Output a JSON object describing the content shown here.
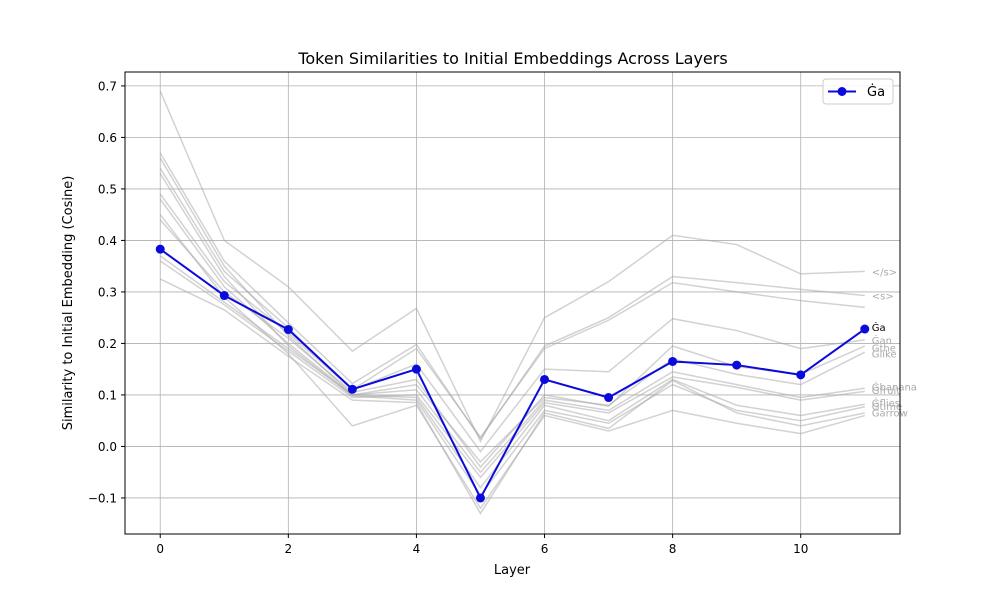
{
  "chart_data": {
    "type": "line",
    "title": "Token Similarities to Initial Embeddings Across Layers",
    "xlabel": "Layer",
    "ylabel": "Similarity to Initial Embedding (Cosine)",
    "xlim": [
      -0.55,
      11.55
    ],
    "ylim": [
      -0.17,
      0.727
    ],
    "x_ticks": [
      0,
      2,
      4,
      6,
      8,
      10
    ],
    "x_tick_labels": [
      "0",
      "2",
      "4",
      "6",
      "8",
      "10"
    ],
    "y_ticks": [
      -0.1,
      0.0,
      0.1,
      0.2,
      0.3,
      0.4,
      0.5,
      0.6,
      0.7
    ],
    "y_tick_labels": [
      "−0.1",
      "0.0",
      "0.1",
      "0.2",
      "0.3",
      "0.4",
      "0.5",
      "0.6",
      "0.7"
    ],
    "grid": true,
    "legend": {
      "position": "top-right",
      "entries": [
        "Ġa"
      ]
    },
    "x": [
      0,
      1,
      2,
      3,
      4,
      5,
      6,
      7,
      8,
      9,
      10,
      11
    ],
    "highlight": {
      "name": "Ġa",
      "color": "#0a0adc",
      "values": [
        0.383,
        0.293,
        0.227,
        0.111,
        0.15,
        -0.1,
        0.13,
        0.095,
        0.165,
        0.158,
        0.139,
        0.228
      ]
    },
    "background_series_color": "#a6a6a6",
    "background_series": [
      {
        "name": "</s>",
        "values": [
          0.69,
          0.4,
          0.31,
          0.185,
          0.268,
          0.01,
          0.25,
          0.32,
          0.41,
          0.392,
          0.335,
          0.34
        ]
      },
      {
        "name": "<s>",
        "values": [
          0.57,
          0.36,
          0.24,
          0.122,
          0.198,
          0.015,
          0.195,
          0.25,
          0.33,
          0.318,
          0.305,
          0.293
        ]
      },
      {
        "name": "",
        "values": [
          0.54,
          0.34,
          0.23,
          0.11,
          0.19,
          0.018,
          0.19,
          0.245,
          0.318,
          0.3,
          0.283,
          0.27
        ]
      },
      {
        "name": "Ġan",
        "values": [
          0.49,
          0.32,
          0.22,
          0.11,
          0.16,
          -0.01,
          0.15,
          0.145,
          0.248,
          0.225,
          0.19,
          0.207
        ]
      },
      {
        "name": "Ġthe",
        "values": [
          0.44,
          0.3,
          0.21,
          0.105,
          0.13,
          -0.04,
          0.1,
          0.078,
          0.195,
          0.155,
          0.14,
          0.195
        ]
      },
      {
        "name": "Ġlike",
        "values": [
          0.48,
          0.31,
          0.2,
          0.1,
          0.12,
          -0.03,
          0.095,
          0.08,
          0.17,
          0.14,
          0.12,
          0.183
        ]
      },
      {
        "name": "Ġbanana",
        "values": [
          0.37,
          0.28,
          0.19,
          0.1,
          0.11,
          -0.05,
          0.09,
          0.07,
          0.145,
          0.12,
          0.095,
          0.113
        ]
      },
      {
        "name": "Ġfruit",
        "values": [
          0.36,
          0.275,
          0.185,
          0.095,
          0.1,
          -0.06,
          0.085,
          0.065,
          0.135,
          0.115,
          0.09,
          0.107
        ]
      },
      {
        "name": "Ġflies",
        "values": [
          0.56,
          0.35,
          0.215,
          0.1,
          0.095,
          -0.08,
          0.08,
          0.05,
          0.13,
          0.08,
          0.06,
          0.082
        ]
      },
      {
        "name": "Ġtime",
        "values": [
          0.53,
          0.33,
          0.195,
          0.098,
          0.09,
          -0.095,
          0.07,
          0.045,
          0.12,
          0.07,
          0.05,
          0.077
        ]
      },
      {
        "name": "Ġarrow",
        "values": [
          0.45,
          0.29,
          0.18,
          0.04,
          0.08,
          -0.12,
          0.06,
          0.03,
          0.07,
          0.045,
          0.025,
          0.06
        ]
      },
      {
        "name": "",
        "values": [
          0.325,
          0.265,
          0.175,
          0.09,
          0.085,
          -0.13,
          0.065,
          0.035,
          0.128,
          0.065,
          0.04,
          0.065
        ]
      }
    ],
    "end_labels": [
      {
        "text": "</s>",
        "value": 0.34
      },
      {
        "text": "<s>",
        "value": 0.293
      },
      {
        "text": "Ġa",
        "value": 0.232,
        "emphasis": true
      },
      {
        "text": "Ġan",
        "value": 0.207
      },
      {
        "text": "Ġthe",
        "value": 0.192
      },
      {
        "text": "Ġlike",
        "value": 0.18
      },
      {
        "text": "Ġbanana",
        "value": 0.116
      },
      {
        "text": "Ġfruit",
        "value": 0.11
      },
      {
        "text": "Ġflies",
        "value": 0.085
      },
      {
        "text": "Ġtime",
        "value": 0.079
      },
      {
        "text": "Ġarrow",
        "value": 0.066
      }
    ]
  }
}
